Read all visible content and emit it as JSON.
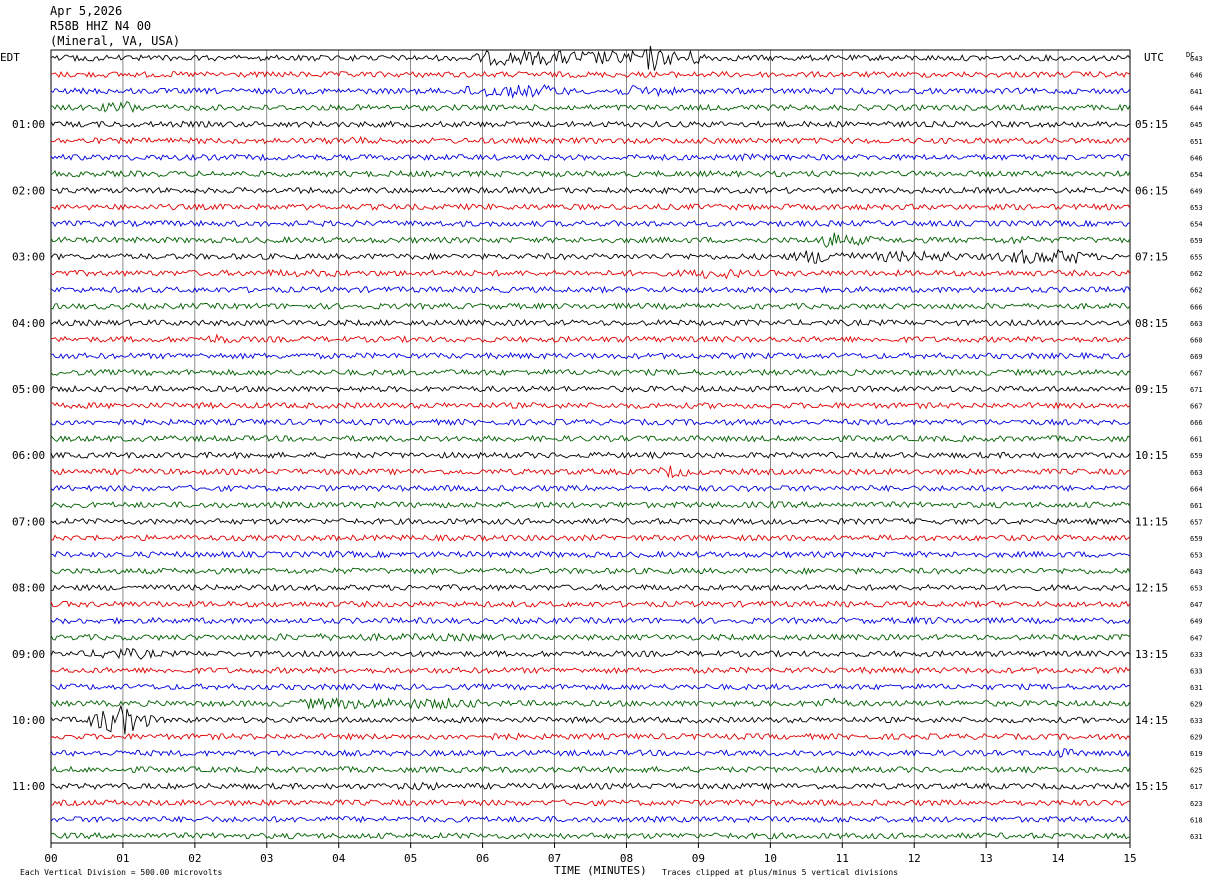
{
  "header": {
    "date": "Apr 5,2026",
    "station": "R58B HHZ N4 00",
    "location": "(Mineral, VA, USA)"
  },
  "labels": {
    "left_tz": "EDT",
    "right_tz": "UTC",
    "dc": "DC",
    "xlabel": "TIME (MINUTES)",
    "footnote_left": "Each Vertical Division =  500.00 microvolts",
    "footnote_right": "Traces clipped at plus/minus 5 vertical divisions"
  },
  "colors": {
    "trace_cycle": [
      "#000000",
      "#e00000",
      "#0000e0",
      "#006000"
    ],
    "grid": "#000000"
  },
  "chart_data": {
    "type": "line",
    "title": "",
    "xlabel": "TIME (MINUTES)",
    "ylabel": "",
    "xlim": [
      0,
      15
    ],
    "x_ticks": [
      "00",
      "01",
      "02",
      "03",
      "04",
      "05",
      "06",
      "07",
      "08",
      "09",
      "10",
      "11",
      "12",
      "13",
      "14",
      "15"
    ],
    "rows_count": 48,
    "minutes_per_row": 15,
    "left_time_labels": [
      {
        "row": 4,
        "label": "01:00"
      },
      {
        "row": 8,
        "label": "02:00"
      },
      {
        "row": 12,
        "label": "03:00"
      },
      {
        "row": 16,
        "label": "04:00"
      },
      {
        "row": 20,
        "label": "05:00"
      },
      {
        "row": 24,
        "label": "06:00"
      },
      {
        "row": 28,
        "label": "07:00"
      },
      {
        "row": 32,
        "label": "08:00"
      },
      {
        "row": 36,
        "label": "09:00"
      },
      {
        "row": 40,
        "label": "10:00"
      },
      {
        "row": 44,
        "label": "11:00"
      }
    ],
    "right_time_labels": [
      {
        "row": 4,
        "label": "05:15"
      },
      {
        "row": 8,
        "label": "06:15"
      },
      {
        "row": 12,
        "label": "07:15"
      },
      {
        "row": 16,
        "label": "08:15"
      },
      {
        "row": 20,
        "label": "09:15"
      },
      {
        "row": 24,
        "label": "10:15"
      },
      {
        "row": 28,
        "label": "11:15"
      },
      {
        "row": 32,
        "label": "12:15"
      },
      {
        "row": 36,
        "label": "13:15"
      },
      {
        "row": 40,
        "label": "14:15"
      },
      {
        "row": 44,
        "label": "15:15"
      }
    ],
    "dc_offsets": [
      643,
      646,
      641,
      644,
      645,
      651,
      646,
      654,
      649,
      653,
      654,
      659,
      655,
      662,
      662,
      666,
      663,
      660,
      669,
      667,
      671,
      667,
      666,
      661,
      659,
      663,
      664,
      661,
      657,
      659,
      653,
      643,
      653,
      647,
      649,
      647,
      633,
      633,
      631,
      629,
      633,
      629,
      619,
      625,
      617,
      623,
      618,
      631
    ],
    "series": [
      {
        "row": 0,
        "bursts": [
          [
            6.0,
            9.0,
            4
          ],
          [
            8.3,
            8.4,
            8
          ]
        ]
      },
      {
        "row": 2,
        "bursts": [
          [
            5.8,
            7.0,
            3.5
          ],
          [
            8.0,
            8.5,
            3
          ]
        ]
      },
      {
        "row": 3,
        "bursts": [
          [
            0.9,
            1.1,
            4
          ]
        ]
      },
      {
        "row": 5,
        "bursts": [
          [
            4.1,
            4.2,
            3
          ]
        ]
      },
      {
        "row": 6,
        "bursts": [
          [
            9.6,
            9.7,
            2
          ]
        ]
      },
      {
        "row": 11,
        "bursts": [
          [
            10.8,
            10.9,
            6
          ],
          [
            11.2,
            11.3,
            3
          ],
          [
            13.4,
            13.5,
            3
          ]
        ]
      },
      {
        "row": 12,
        "bursts": [
          [
            10.5,
            11.0,
            4
          ],
          [
            11.5,
            12.5,
            3
          ],
          [
            13.3,
            14.3,
            4
          ]
        ]
      },
      {
        "row": 13,
        "bursts": [
          [
            3.0,
            4.0,
            2
          ],
          [
            9.0,
            9.5,
            3
          ]
        ]
      },
      {
        "row": 17,
        "bursts": [
          [
            2.3,
            2.4,
            3
          ]
        ]
      },
      {
        "row": 25,
        "bursts": [
          [
            8.6,
            8.7,
            4
          ]
        ]
      },
      {
        "row": 26,
        "bursts": [
          [
            9.7,
            9.8,
            2
          ]
        ]
      },
      {
        "row": 27,
        "bursts": [
          [
            10.0,
            10.1,
            2
          ]
        ]
      },
      {
        "row": 30,
        "bursts": [
          [
            3.9,
            4.0,
            2
          ]
        ]
      },
      {
        "row": 34,
        "bursts": [
          [
            12.0,
            12.5,
            2
          ]
        ]
      },
      {
        "row": 35,
        "bursts": [
          [
            3.0,
            6.0,
            2
          ]
        ]
      },
      {
        "row": 36,
        "bursts": [
          [
            0.7,
            1.3,
            3
          ]
        ]
      },
      {
        "row": 37,
        "bursts": [
          [
            11.4,
            11.5,
            2
          ]
        ]
      },
      {
        "row": 39,
        "bursts": [
          [
            3.5,
            5.8,
            3
          ],
          [
            10.7,
            10.9,
            3
          ]
        ]
      },
      {
        "row": 40,
        "bursts": [
          [
            0.7,
            1.2,
            8
          ]
        ]
      },
      {
        "row": 41,
        "bursts": [
          [
            6.1,
            6.4,
            2
          ]
        ]
      },
      {
        "row": 42,
        "bursts": [
          [
            14.0,
            14.1,
            3
          ]
        ]
      },
      {
        "row": 44,
        "bursts": [
          [
            5.1,
            5.2,
            3
          ]
        ]
      },
      {
        "row": 46,
        "bursts": [
          [
            10.9,
            11.0,
            2
          ]
        ]
      }
    ]
  }
}
